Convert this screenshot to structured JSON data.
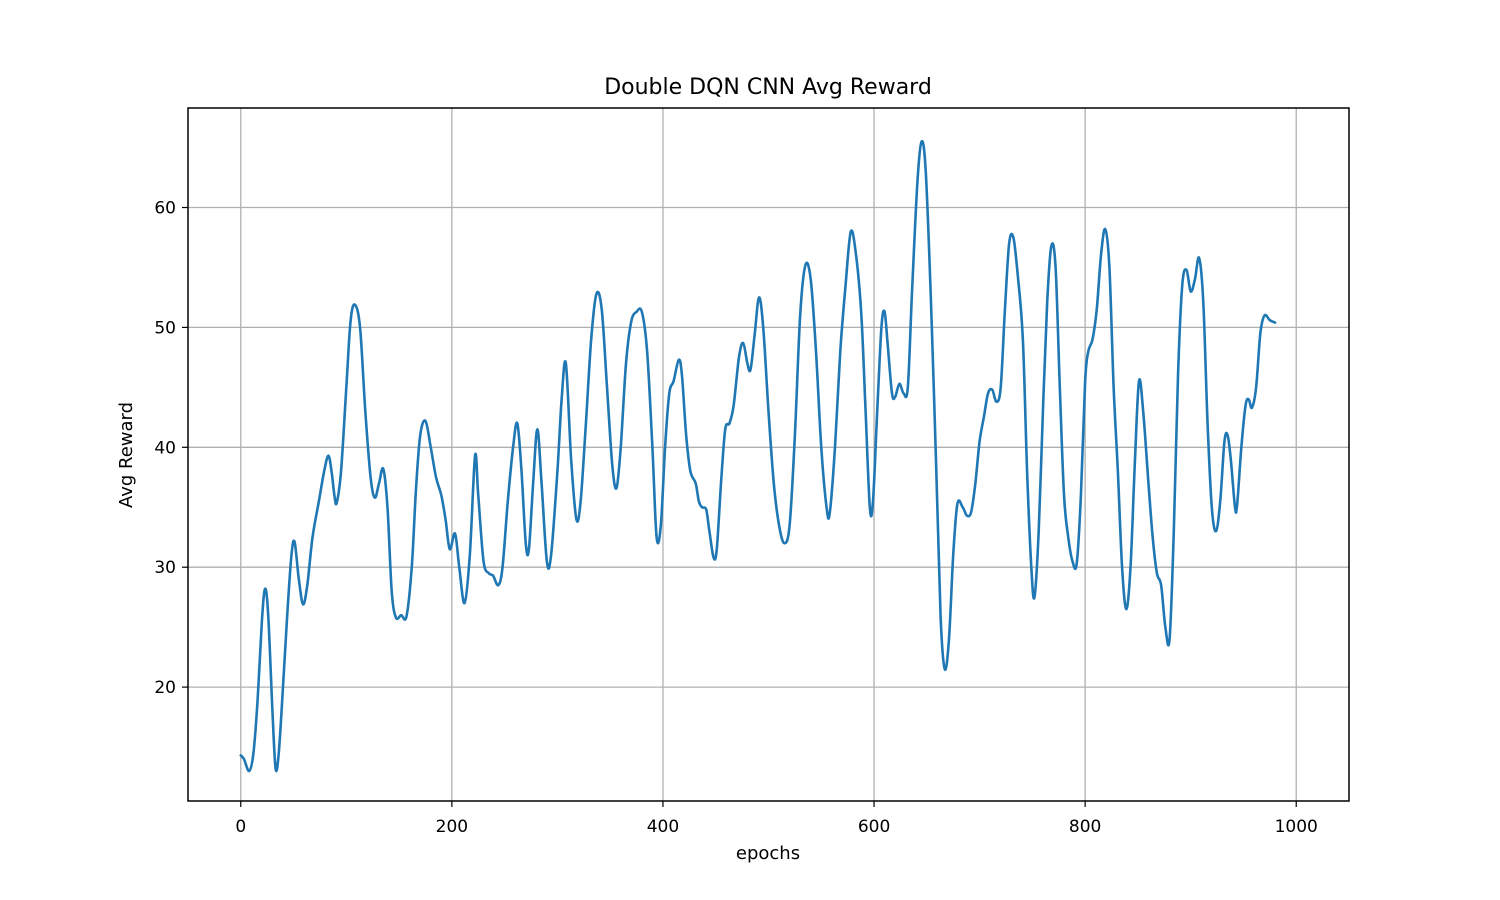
{
  "chart_data": {
    "type": "line",
    "title": "Double DQN CNN Avg Reward",
    "xlabel": "epochs",
    "ylabel": "Avg Reward",
    "xlim": [
      -50,
      1050
    ],
    "ylim": [
      10.5,
      68.3
    ],
    "xticks": [
      0,
      200,
      400,
      600,
      800,
      1000
    ],
    "yticks": [
      20,
      30,
      40,
      50,
      60
    ],
    "grid": true,
    "line_color": "#1f77b4",
    "series": [
      {
        "name": "Avg Reward",
        "points": [
          [
            0,
            14.3
          ],
          [
            3,
            14.0
          ],
          [
            8,
            13.0
          ],
          [
            12,
            14.5
          ],
          [
            16,
            19.0
          ],
          [
            20,
            25.5
          ],
          [
            23,
            28.2
          ],
          [
            26,
            26.0
          ],
          [
            30,
            18.0
          ],
          [
            33,
            13.2
          ],
          [
            36,
            14.5
          ],
          [
            40,
            20.0
          ],
          [
            44,
            26.0
          ],
          [
            48,
            31.0
          ],
          [
            51,
            32.1
          ],
          [
            55,
            29.0
          ],
          [
            59,
            26.9
          ],
          [
            63,
            28.5
          ],
          [
            68,
            32.5
          ],
          [
            74,
            35.5
          ],
          [
            79,
            38.0
          ],
          [
            83,
            39.3
          ],
          [
            86,
            38.0
          ],
          [
            89,
            35.8
          ],
          [
            91,
            35.4
          ],
          [
            95,
            38.0
          ],
          [
            100,
            45.0
          ],
          [
            104,
            50.5
          ],
          [
            108,
            51.9
          ],
          [
            113,
            50.0
          ],
          [
            118,
            43.0
          ],
          [
            123,
            37.5
          ],
          [
            127,
            35.8
          ],
          [
            131,
            37.0
          ],
          [
            135,
            38.2
          ],
          [
            139,
            35.0
          ],
          [
            143,
            28.0
          ],
          [
            147,
            25.8
          ],
          [
            152,
            26.0
          ],
          [
            157,
            25.9
          ],
          [
            162,
            30.0
          ],
          [
            166,
            36.5
          ],
          [
            170,
            41.0
          ],
          [
            175,
            42.2
          ],
          [
            180,
            40.0
          ],
          [
            185,
            37.5
          ],
          [
            190,
            36.0
          ],
          [
            194,
            34.0
          ],
          [
            198,
            31.5
          ],
          [
            203,
            32.8
          ],
          [
            207,
            30.0
          ],
          [
            212,
            27.0
          ],
          [
            217,
            31.0
          ],
          [
            222,
            39.3
          ],
          [
            225,
            36.0
          ],
          [
            230,
            30.5
          ],
          [
            235,
            29.5
          ],
          [
            239,
            29.3
          ],
          [
            244,
            28.5
          ],
          [
            248,
            30.0
          ],
          [
            253,
            35.5
          ],
          [
            258,
            40.0
          ],
          [
            262,
            42.0
          ],
          [
            266,
            38.0
          ],
          [
            270,
            32.0
          ],
          [
            273,
            31.5
          ],
          [
            277,
            37.0
          ],
          [
            281,
            41.5
          ],
          [
            285,
            37.0
          ],
          [
            290,
            30.5
          ],
          [
            294,
            31.0
          ],
          [
            300,
            38.0
          ],
          [
            304,
            44.0
          ],
          [
            308,
            47.0
          ],
          [
            313,
            39.0
          ],
          [
            318,
            34.0
          ],
          [
            322,
            35.5
          ],
          [
            327,
            42.0
          ],
          [
            332,
            49.0
          ],
          [
            337,
            52.8
          ],
          [
            342,
            51.5
          ],
          [
            347,
            45.0
          ],
          [
            352,
            38.5
          ],
          [
            356,
            36.6
          ],
          [
            360,
            40.0
          ],
          [
            365,
            47.0
          ],
          [
            370,
            50.5
          ],
          [
            375,
            51.3
          ],
          [
            380,
            51.3
          ],
          [
            385,
            48.0
          ],
          [
            390,
            40.0
          ],
          [
            394,
            32.5
          ],
          [
            398,
            33.5
          ],
          [
            402,
            40.0
          ],
          [
            406,
            44.5
          ],
          [
            410,
            45.5
          ],
          [
            415,
            47.3
          ],
          [
            418,
            46.0
          ],
          [
            422,
            41.0
          ],
          [
            426,
            38.0
          ],
          [
            431,
            37.0
          ],
          [
            434,
            35.5
          ],
          [
            437,
            35.0
          ],
          [
            441,
            34.8
          ],
          [
            444,
            33.0
          ],
          [
            448,
            30.8
          ],
          [
            451,
            31.5
          ],
          [
            455,
            37.0
          ],
          [
            459,
            41.5
          ],
          [
            463,
            42.0
          ],
          [
            467,
            43.5
          ],
          [
            472,
            47.5
          ],
          [
            476,
            48.7
          ],
          [
            480,
            47.0
          ],
          [
            483,
            46.5
          ],
          [
            487,
            49.5
          ],
          [
            491,
            52.5
          ],
          [
            495,
            50.0
          ],
          [
            500,
            43.0
          ],
          [
            505,
            37.0
          ],
          [
            510,
            33.5
          ],
          [
            515,
            32.0
          ],
          [
            520,
            33.5
          ],
          [
            525,
            41.0
          ],
          [
            530,
            51.0
          ],
          [
            535,
            55.2
          ],
          [
            540,
            54.0
          ],
          [
            545,
            48.0
          ],
          [
            550,
            40.0
          ],
          [
            555,
            35.0
          ],
          [
            558,
            34.5
          ],
          [
            563,
            40.0
          ],
          [
            568,
            48.0
          ],
          [
            573,
            53.5
          ],
          [
            578,
            58.0
          ],
          [
            583,
            56.0
          ],
          [
            588,
            51.0
          ],
          [
            592,
            43.0
          ],
          [
            596,
            35.0
          ],
          [
            599,
            35.5
          ],
          [
            603,
            43.0
          ],
          [
            607,
            50.0
          ],
          [
            610,
            51.3
          ],
          [
            613,
            48.5
          ],
          [
            617,
            44.5
          ],
          [
            620,
            44.2
          ],
          [
            624,
            45.3
          ],
          [
            628,
            44.5
          ],
          [
            632,
            45.0
          ],
          [
            636,
            53.0
          ],
          [
            641,
            62.0
          ],
          [
            645,
            65.5
          ],
          [
            649,
            63.0
          ],
          [
            654,
            52.0
          ],
          [
            659,
            38.0
          ],
          [
            663,
            26.0
          ],
          [
            667,
            21.5
          ],
          [
            671,
            24.0
          ],
          [
            675,
            31.0
          ],
          [
            679,
            35.3
          ],
          [
            684,
            35.0
          ],
          [
            688,
            34.3
          ],
          [
            692,
            34.6
          ],
          [
            696,
            37.0
          ],
          [
            700,
            40.5
          ],
          [
            704,
            42.5
          ],
          [
            708,
            44.5
          ],
          [
            712,
            44.8
          ],
          [
            716,
            43.8
          ],
          [
            720,
            45.0
          ],
          [
            724,
            51.5
          ],
          [
            728,
            57.0
          ],
          [
            732,
            57.5
          ],
          [
            736,
            54.5
          ],
          [
            741,
            49.0
          ],
          [
            745,
            38.0
          ],
          [
            749,
            30.0
          ],
          [
            752,
            27.5
          ],
          [
            756,
            33.0
          ],
          [
            760,
            43.0
          ],
          [
            764,
            52.0
          ],
          [
            768,
            56.8
          ],
          [
            772,
            55.0
          ],
          [
            776,
            45.0
          ],
          [
            780,
            36.0
          ],
          [
            784,
            32.5
          ],
          [
            788,
            30.5
          ],
          [
            792,
            30.3
          ],
          [
            796,
            36.0
          ],
          [
            800,
            45.5
          ],
          [
            803,
            48.0
          ],
          [
            807,
            49.0
          ],
          [
            811,
            51.5
          ],
          [
            815,
            56.0
          ],
          [
            819,
            58.2
          ],
          [
            823,
            55.0
          ],
          [
            827,
            45.0
          ],
          [
            831,
            38.0
          ],
          [
            835,
            30.0
          ],
          [
            839,
            26.5
          ],
          [
            843,
            30.0
          ],
          [
            847,
            38.5
          ],
          [
            851,
            45.5
          ],
          [
            855,
            43.0
          ],
          [
            860,
            37.0
          ],
          [
            864,
            32.5
          ],
          [
            868,
            29.5
          ],
          [
            872,
            28.5
          ],
          [
            876,
            25.0
          ],
          [
            880,
            24.0
          ],
          [
            884,
            33.0
          ],
          [
            888,
            46.0
          ],
          [
            892,
            53.5
          ],
          [
            896,
            54.8
          ],
          [
            900,
            53.0
          ],
          [
            904,
            54.0
          ],
          [
            908,
            55.8
          ],
          [
            912,
            52.0
          ],
          [
            916,
            42.0
          ],
          [
            920,
            35.0
          ],
          [
            924,
            33.0
          ],
          [
            928,
            35.5
          ],
          [
            932,
            40.5
          ],
          [
            935,
            41.0
          ],
          [
            938,
            39.0
          ],
          [
            942,
            35.0
          ],
          [
            944,
            35.2
          ],
          [
            948,
            40.0
          ],
          [
            952,
            43.5
          ],
          [
            955,
            44.0
          ],
          [
            958,
            43.3
          ],
          [
            962,
            45.0
          ],
          [
            966,
            49.5
          ],
          [
            970,
            51.0
          ],
          [
            975,
            50.6
          ],
          [
            980,
            50.4
          ]
        ]
      }
    ]
  }
}
